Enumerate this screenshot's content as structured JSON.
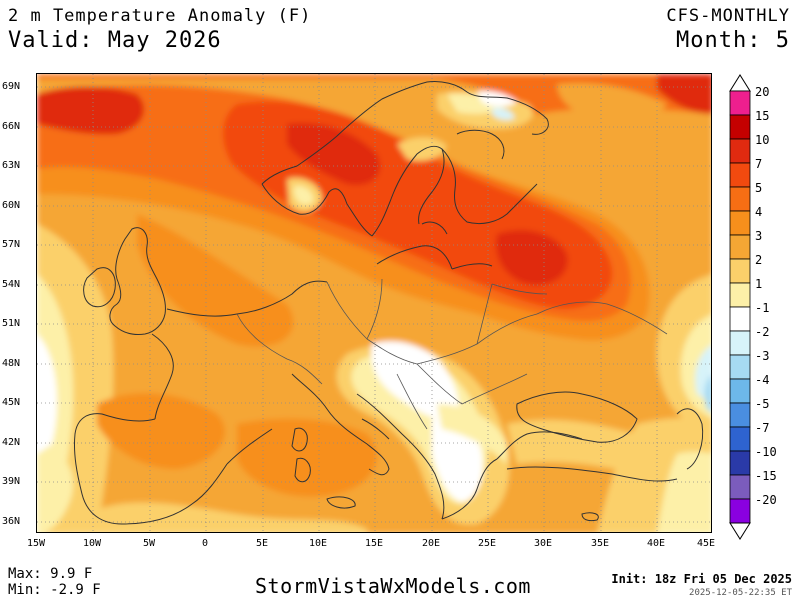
{
  "header": {
    "title": "2 m Temperature Anomaly (F)",
    "valid": "Valid: May 2026",
    "model": "CFS-MONTHLY",
    "month": "Month: 5"
  },
  "axes": {
    "lat_labels": [
      "69N",
      "66N",
      "63N",
      "60N",
      "57N",
      "54N",
      "51N",
      "48N",
      "45N",
      "42N",
      "39N",
      "36N"
    ],
    "lon_labels": [
      "15W",
      "10W",
      "5W",
      "0",
      "5E",
      "10E",
      "15E",
      "20E",
      "25E",
      "30E",
      "35E",
      "40E",
      "45E"
    ]
  },
  "legend": {
    "labels": [
      "20",
      "15",
      "10",
      "7",
      "5",
      "4",
      "3",
      "2",
      "1",
      "-1",
      "-2",
      "-3",
      "-4",
      "-5",
      "-7",
      "-10",
      "-15",
      "-20"
    ],
    "colors": [
      "#ee1f8e",
      "#c40000",
      "#e02a10",
      "#f24a0f",
      "#f76e14",
      "#f78f1c",
      "#f5a634",
      "#fbd06a",
      "#fdf0a8",
      "#ffffff",
      "#d7f3f9",
      "#a6daf2",
      "#6db8ea",
      "#4a8ee0",
      "#2e63d0",
      "#2a3aa8",
      "#7b5cbd",
      "#8a00e0"
    ]
  },
  "footer": {
    "max": "Max: 9.9 F",
    "min": "Min: -2.9 F",
    "site": "StormVistaWxModels.com",
    "init": "Init: 18z Fri 05 Dec 2025",
    "stamp": "2025-12-05-22:35 ET"
  }
}
